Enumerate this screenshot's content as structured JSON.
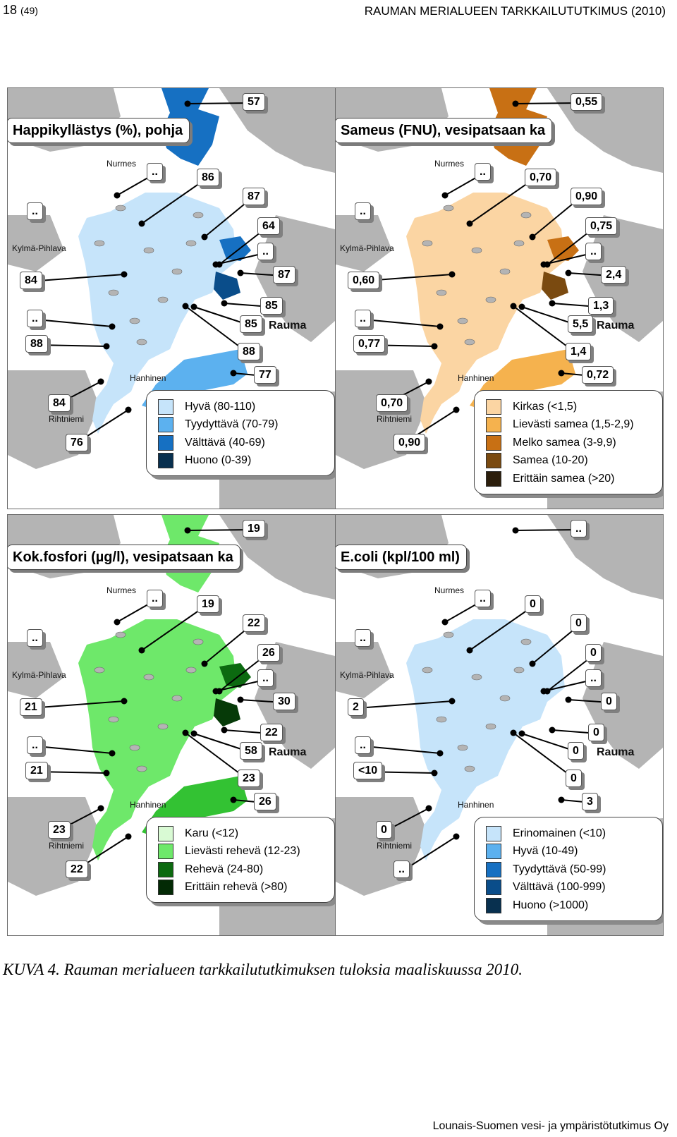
{
  "header": {
    "page": "18",
    "page_total": "(49)",
    "report_title": "RAUMAN MERIALUEEN TARKKAILUTUTKIMUS (2010)"
  },
  "place_names": {
    "nurmes": "Nurmes",
    "kylma_pihlava": "Kylmä-Pihlava",
    "hanhinen": "Hanhinen",
    "rihtniemi": "Rihtniemi",
    "rauma": "Rauma"
  },
  "maps": [
    {
      "title": "Happikyllästys (%), pohja",
      "zone_colors": {
        "main": "#c6e4fa",
        "mid": "#5cb1ef",
        "high": "#1670c2",
        "highest": "#0a4d8a"
      },
      "labels": [
        "57",
        "..",
        "86",
        "..",
        "87",
        "64",
        "..",
        "84",
        "87",
        "..",
        "85",
        "85",
        "88",
        "88",
        "77",
        "84",
        "76"
      ],
      "legend": [
        {
          "color": "#c6e4fa",
          "text": "Hyvä (80-110)"
        },
        {
          "color": "#5cb1ef",
          "text": "Tyydyttävä (70-79)"
        },
        {
          "color": "#1670c2",
          "text": "Välttävä (40-69)"
        },
        {
          "color": "#08304f",
          "text": "Huono (0-39)"
        }
      ]
    },
    {
      "title": "Sameus (FNU), vesipatsaan ka",
      "zone_colors": {
        "main": "#fbd5a3",
        "mid": "#f5b24e",
        "high": "#c87014",
        "highest": "#7a4a10"
      },
      "labels": [
        "0,55",
        "..",
        "0,70",
        "..",
        "0,90",
        "0,75",
        "..",
        "0,60",
        "2,4",
        "..",
        "1,3",
        "5,5",
        "0,77",
        "1,4",
        "0,72",
        "0,70",
        "0,90"
      ],
      "legend": [
        {
          "color": "#fbd5a3",
          "text": "Kirkas (<1,5)"
        },
        {
          "color": "#f5b24e",
          "text": "Lievästi samea (1,5-2,9)"
        },
        {
          "color": "#c87014",
          "text": "Melko samea (3-9,9)"
        },
        {
          "color": "#7a4a10",
          "text": "Samea (10-20)"
        },
        {
          "color": "#2c1e0c",
          "text": "Erittäin samea (>20)"
        }
      ]
    },
    {
      "title": "Kok.fosfori (µg/l), vesipatsaan ka",
      "zone_colors": {
        "main": "#6ee86a",
        "mid": "#33c233",
        "high": "#0c6a10",
        "highest": "#063a08"
      },
      "labels": [
        "19",
        "..",
        "19",
        "..",
        "22",
        "26",
        "..",
        "21",
        "30",
        "..",
        "22",
        "58",
        "21",
        "23",
        "26",
        "23",
        "22"
      ],
      "legend": [
        {
          "color": "#d9fad4",
          "text": "Karu (<12)"
        },
        {
          "color": "#6ee86a",
          "text": "Lievästi rehevä (12-23)"
        },
        {
          "color": "#0c6a10",
          "text": "Rehevä (24-80)"
        },
        {
          "color": "#032a05",
          "text": "Erittäin rehevä (>80)"
        }
      ]
    },
    {
      "title": "E.coli (kpl/100 ml)",
      "zone_colors": {
        "main": "#c6e4fa",
        "mid": "#c6e4fa",
        "high": "#c6e4fa",
        "highest": "#c6e4fa"
      },
      "labels": [
        "..",
        "..",
        "0",
        "..",
        "0",
        "0",
        "..",
        "2",
        "0",
        "..",
        "0",
        "0",
        "<10",
        "0",
        "3",
        "0",
        ".."
      ],
      "legend": [
        {
          "color": "#c6e4fa",
          "text": "Erinomainen (<10)"
        },
        {
          "color": "#5cb1ef",
          "text": "Hyvä (10-49)"
        },
        {
          "color": "#1670c2",
          "text": "Tyydyttävä (50-99)"
        },
        {
          "color": "#0a4d8a",
          "text": "Välttävä (100-999)"
        },
        {
          "color": "#08304f",
          "text": "Huono (>1000)"
        }
      ]
    }
  ],
  "caption": "KUVA 4. Rauman merialueen tarkkailututkimuksen tuloksia maaliskuussa 2010.",
  "footer": "Lounais-Suomen vesi- ja ympäristötutkimus Oy"
}
